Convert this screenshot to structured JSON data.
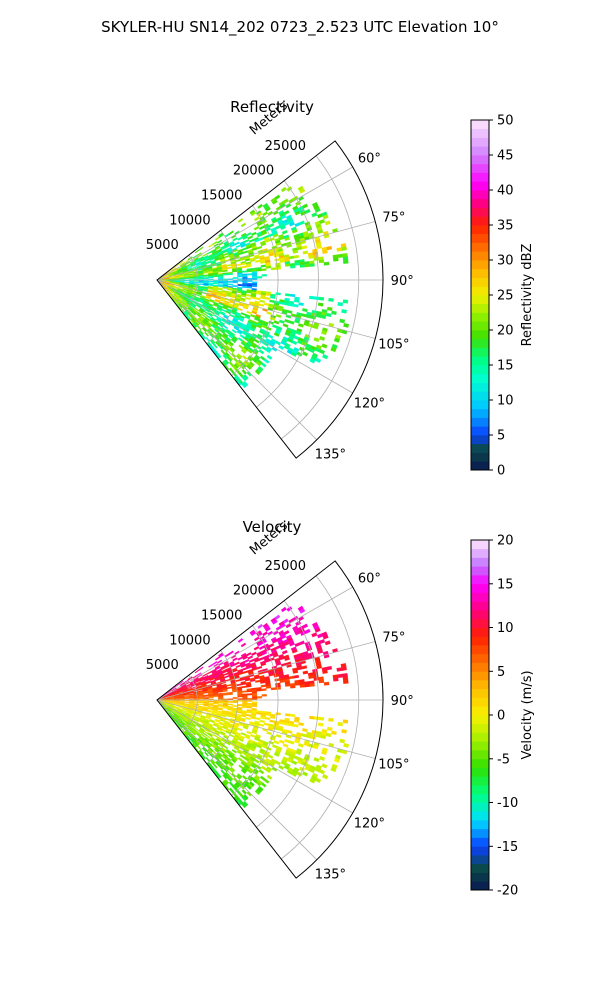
{
  "figure": {
    "title": "SKYLER-HU  SN14_202  0723_2.523 UTC Elevation 10°"
  },
  "chart_data": [
    {
      "type": "heatmap",
      "projection": "polar-sector",
      "title": "Reflectivity",
      "radial_label": "Meters",
      "radial_ticks": [
        5000,
        10000,
        15000,
        20000,
        25000
      ],
      "radial_tick_labels": [
        "5000",
        "10000",
        "15000",
        "20000",
        "25000"
      ],
      "rlim": [
        0,
        28000
      ],
      "theta_ticks": [
        "60°",
        "75°",
        "90°",
        "105°",
        "120°",
        "135°"
      ],
      "theta_range_deg": [
        52,
        142
      ],
      "grid": true,
      "colorbar": {
        "label": "Reflectivity dBZ",
        "range": [
          0,
          50
        ],
        "ticks": [
          "0",
          "5",
          "10",
          "15",
          "20",
          "25",
          "30",
          "35",
          "40",
          "45",
          "50"
        ],
        "stops": [
          [
            0,
            "#0a1850"
          ],
          [
            3,
            "#0a4a4a"
          ],
          [
            5,
            "#0a40ff"
          ],
          [
            9,
            "#00c8ff"
          ],
          [
            13,
            "#00ffd0"
          ],
          [
            16,
            "#00ff80"
          ],
          [
            19,
            "#40e000"
          ],
          [
            22,
            "#90f000"
          ],
          [
            25,
            "#f0f000"
          ],
          [
            28,
            "#ffc000"
          ],
          [
            31,
            "#ff8000"
          ],
          [
            35,
            "#ff2000"
          ],
          [
            38,
            "#ff0080"
          ],
          [
            41,
            "#ff00ff"
          ],
          [
            45,
            "#d080ff"
          ],
          [
            50,
            "#ffe8ff"
          ]
        ]
      },
      "field_description": "Echoes span ~55°–140° azimuth out to ~25 km; mostly 12–25 dBZ with cores of 25–35 dBZ near the radar and along the 70°–80° band; weaker 10–15 dBZ near 90°."
    },
    {
      "type": "heatmap",
      "projection": "polar-sector",
      "title": "Velocity",
      "radial_label": "Meters",
      "radial_ticks": [
        5000,
        10000,
        15000,
        20000,
        25000
      ],
      "radial_tick_labels": [
        "5000",
        "10000",
        "15000",
        "20000",
        "25000"
      ],
      "rlim": [
        0,
        28000
      ],
      "theta_ticks": [
        "60°",
        "75°",
        "90°",
        "105°",
        "120°",
        "135°"
      ],
      "theta_range_deg": [
        52,
        142
      ],
      "grid": true,
      "colorbar": {
        "label": "Velocity (m/s)",
        "range": [
          -20,
          20
        ],
        "ticks": [
          "-20",
          "-15",
          "-10",
          "-5",
          "0",
          "5",
          "10",
          "15",
          "20"
        ],
        "stops": [
          [
            -20,
            "#0a1850"
          ],
          [
            -17.5,
            "#0a4a4a"
          ],
          [
            -15,
            "#0a40ff"
          ],
          [
            -12,
            "#00e0ff"
          ],
          [
            -9,
            "#00ff80"
          ],
          [
            -6,
            "#30e000"
          ],
          [
            -3,
            "#a0f000"
          ],
          [
            0,
            "#f8f000"
          ],
          [
            3,
            "#ffc000"
          ],
          [
            6,
            "#ff7000"
          ],
          [
            9,
            "#ff2000"
          ],
          [
            12,
            "#ff0080"
          ],
          [
            15,
            "#ff00ff"
          ],
          [
            17,
            "#c070ff"
          ],
          [
            20,
            "#ffe8ff"
          ]
        ]
      },
      "field_description": "Positive (outbound) 5–12 m/s toward 55°–90° azimuth with 12–15 m/s pockets at far range; near 0 m/s around 90°–110°; negative -3 to -6 m/s toward 115°–140°."
    }
  ]
}
